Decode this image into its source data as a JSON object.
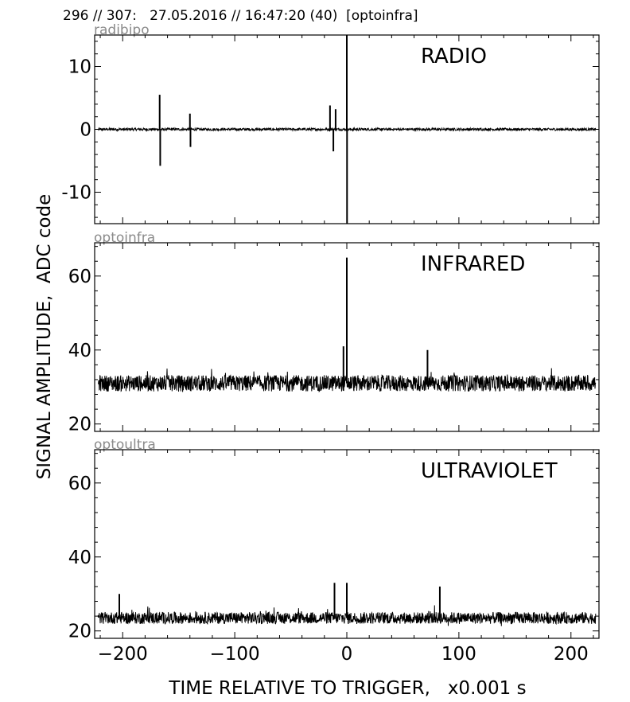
{
  "header": "296 // 307:   27.05.2016 // 16:47:20 (40)  [optoinfra]",
  "ylabel": "SIGNAL AMPLITUDE,  ADC code",
  "xlabel": "TIME RELATIVE TO TRIGGER,   x0.001 s",
  "colors": {
    "trace": "#000000",
    "channel_label": "#8a8a8a",
    "frame": "#000000"
  },
  "chart_data": [
    {
      "type": "line",
      "channel": "radibipo",
      "name": "RADIO",
      "xlim": [
        -225,
        225
      ],
      "ylim": [
        -15,
        15
      ],
      "x_ticks": [
        -200,
        -100,
        0,
        100,
        200
      ],
      "y_ticks": [
        -10,
        0,
        10
      ],
      "baseline": 0,
      "noise": 0.2,
      "spikes": [
        {
          "x": -167,
          "y": 5.5
        },
        {
          "x": -166.5,
          "y": -5.8
        },
        {
          "x": -140,
          "y": 2.5
        },
        {
          "x": -139.5,
          "y": -2.8
        },
        {
          "x": -15,
          "y": 3.8
        },
        {
          "x": -12,
          "y": -3.5
        },
        {
          "x": -10,
          "y": 3.2
        },
        {
          "x": 0,
          "y": 15
        },
        {
          "x": 0.2,
          "y": -15
        }
      ]
    },
    {
      "type": "line",
      "channel": "optoinfra",
      "name": "INFRARED",
      "xlim": [
        -225,
        225
      ],
      "ylim": [
        18,
        69
      ],
      "x_ticks": [
        -200,
        -100,
        0,
        100,
        200
      ],
      "y_ticks": [
        20,
        40,
        60
      ],
      "baseline": 31,
      "noise": 2.2,
      "spikes": [
        {
          "x": 0,
          "y": 65
        },
        {
          "x": -3,
          "y": 41
        },
        {
          "x": 72,
          "y": 40
        }
      ]
    },
    {
      "type": "line",
      "channel": "optoultra",
      "name": "ULTRAVIOLET",
      "xlim": [
        -225,
        225
      ],
      "ylim": [
        18,
        69
      ],
      "x_ticks": [
        -200,
        -100,
        0,
        100,
        200
      ],
      "y_ticks": [
        20,
        40,
        60
      ],
      "baseline": 23.5,
      "noise": 1.6,
      "spikes": [
        {
          "x": -11,
          "y": 33
        },
        {
          "x": 0,
          "y": 33
        },
        {
          "x": 83,
          "y": 32
        },
        {
          "x": -203,
          "y": 30
        }
      ]
    }
  ]
}
